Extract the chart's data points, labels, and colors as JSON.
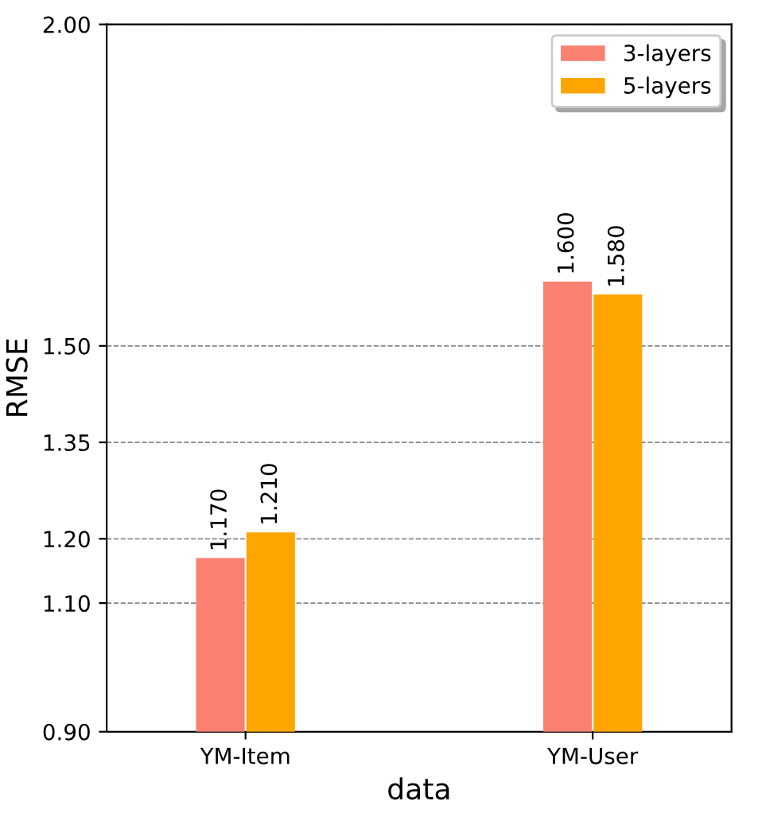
{
  "chart_data": {
    "type": "bar",
    "xlabel": "data",
    "ylabel": "RMSE",
    "categories": [
      "YM-Item",
      "YM-User"
    ],
    "series": [
      {
        "name": "3-layers",
        "color": "#fa8072",
        "values": [
          1.17,
          1.6
        ],
        "value_labels": [
          "1.170",
          "1.600"
        ]
      },
      {
        "name": "5-layers",
        "color": "#ffa500",
        "values": [
          1.21,
          1.58
        ],
        "value_labels": [
          "1.210",
          "1.580"
        ]
      }
    ],
    "ylim": [
      0.9,
      2.0
    ],
    "yticks": [
      {
        "value": 0.9,
        "label": "0.90"
      },
      {
        "value": 1.1,
        "label": "1.10"
      },
      {
        "value": 1.2,
        "label": "1.20"
      },
      {
        "value": 1.35,
        "label": "1.35"
      },
      {
        "value": 1.5,
        "label": "1.50"
      },
      {
        "value": 2.0,
        "label": "2.00"
      }
    ],
    "grid": "y",
    "legend": "top right"
  }
}
